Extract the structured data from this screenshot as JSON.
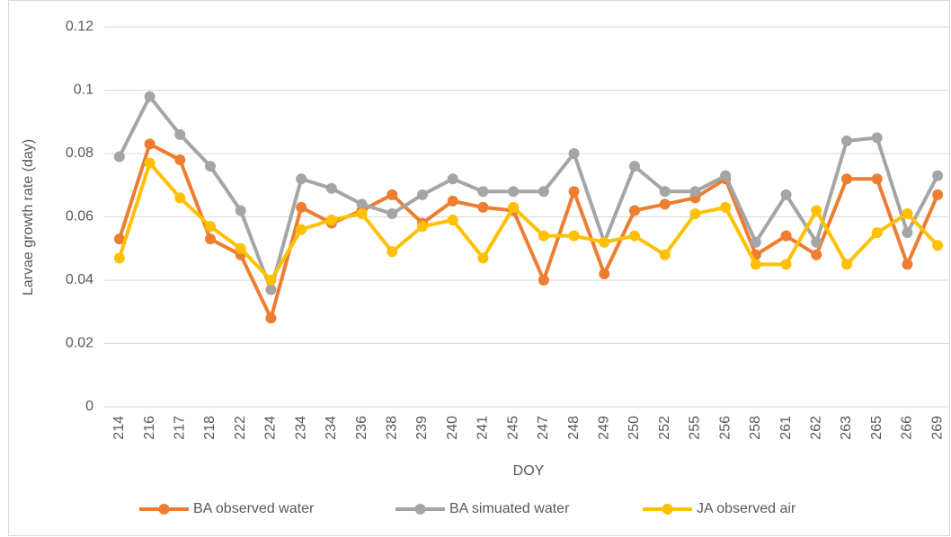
{
  "chart_data": {
    "type": "line",
    "y_label": "Larvae growth rate (day)",
    "x_label": "DOY",
    "categories": [
      "214",
      "216",
      "217",
      "218",
      "222",
      "224",
      "234",
      "234",
      "236",
      "238",
      "239",
      "240",
      "241",
      "245",
      "247",
      "248",
      "249",
      "250",
      "252",
      "255",
      "256",
      "258",
      "261",
      "262",
      "263",
      "265",
      "266",
      "269"
    ],
    "series": [
      {
        "name": "BA observed water",
        "color": "#ED7D31",
        "values": [
          0.053,
          0.083,
          0.078,
          0.053,
          0.048,
          0.028,
          0.063,
          0.058,
          0.062,
          0.067,
          0.058,
          0.065,
          0.063,
          0.062,
          0.04,
          0.068,
          0.042,
          0.062,
          0.064,
          0.066,
          0.072,
          0.048,
          0.054,
          0.048,
          0.072,
          0.072,
          0.045,
          0.067
        ]
      },
      {
        "name": "BA simuated water",
        "color": "#A5A5A5",
        "values": [
          0.079,
          0.098,
          0.086,
          0.076,
          0.062,
          0.037,
          0.072,
          0.069,
          0.064,
          0.061,
          0.067,
          0.072,
          0.068,
          0.068,
          0.068,
          0.08,
          0.052,
          0.076,
          0.068,
          0.068,
          0.073,
          0.052,
          0.067,
          0.052,
          0.084,
          0.085,
          0.055,
          0.073
        ]
      },
      {
        "name": "JA observed air",
        "color": "#FFC000",
        "values": [
          0.047,
          0.077,
          0.066,
          0.057,
          0.05,
          0.04,
          0.056,
          0.059,
          0.061,
          0.049,
          0.057,
          0.059,
          0.047,
          0.063,
          0.054,
          0.054,
          0.052,
          0.054,
          0.048,
          0.061,
          0.063,
          0.045,
          0.045,
          0.062,
          0.045,
          0.055,
          0.061,
          0.051
        ]
      }
    ],
    "ylim": [
      0,
      0.12
    ],
    "yticks": [
      0,
      0.02,
      0.04,
      0.06,
      0.08,
      0.1,
      0.12
    ],
    "grid": true,
    "legend": "bottom"
  }
}
